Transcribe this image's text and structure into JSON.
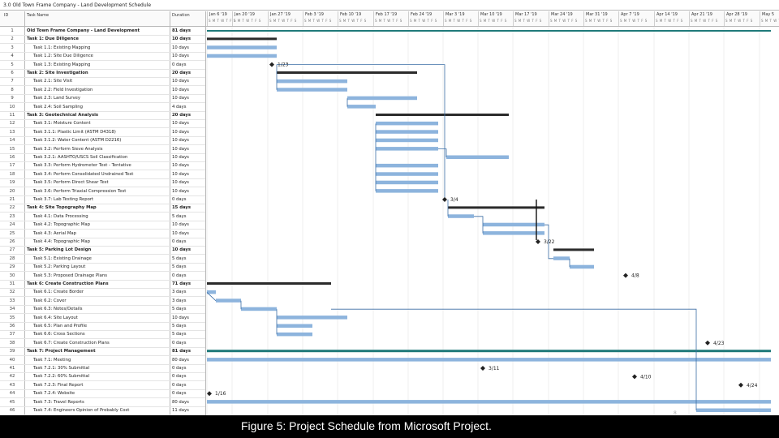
{
  "title": "3.0 Old Town Frame Company - Land Development Schedule",
  "columns": {
    "id": "ID",
    "name": "Task Name",
    "duration": "Duration"
  },
  "timescale": [
    "Jan 6 '19",
    "Jan 20 '19",
    "Jan 27 '19",
    "Feb 3 '19",
    "Feb 10 '19",
    "Feb 17 '19",
    "Feb 24 '19",
    "Mar 3 '19",
    "Mar 10 '19",
    "Mar 17 '19",
    "Mar 24 '19",
    "Mar 31 '19",
    "Apr 7 '19",
    "Apr 14 '19",
    "Apr 21 '19",
    "Apr 28 '19",
    "May 5"
  ],
  "day_letters": "S M T W T F S",
  "tasks": [
    {
      "id": "1",
      "name": "Old Town Frame Company - Land Development",
      "duration": "81 days",
      "summary": true
    },
    {
      "id": "2",
      "name": "Task 1: Due Diligence",
      "duration": "10 days",
      "summary": true
    },
    {
      "id": "3",
      "name": "Task 1.1: Existing Mapping",
      "duration": "10 days"
    },
    {
      "id": "4",
      "name": "Task 1.2: Site Due Diligence",
      "duration": "10 days"
    },
    {
      "id": "5",
      "name": "Task 1.3: Existing Mapping",
      "duration": "0 days"
    },
    {
      "id": "6",
      "name": "Task 2: Site Investigation",
      "duration": "20 days",
      "summary": true
    },
    {
      "id": "7",
      "name": "Task 2.1: Site Visit",
      "duration": "10 days"
    },
    {
      "id": "8",
      "name": "Task 2.2: Field Investigation",
      "duration": "10 days"
    },
    {
      "id": "9",
      "name": "Task 2.3: Land Survey",
      "duration": "10 days"
    },
    {
      "id": "10",
      "name": "Task 2.4: Soil Sampling",
      "duration": "4 days"
    },
    {
      "id": "11",
      "name": "Task 3: Geotechnical Analysis",
      "duration": "20 days",
      "summary": true
    },
    {
      "id": "12",
      "name": "Task 3.1: Moisture Content",
      "duration": "10 days"
    },
    {
      "id": "13",
      "name": "Task 3.1.1: Plastic Limit (ASTM D4318)",
      "duration": "10 days"
    },
    {
      "id": "14",
      "name": "Task 3.1.2: Water Content (ASTM D2216)",
      "duration": "10 days"
    },
    {
      "id": "15",
      "name": "Task 3.2: Perform Sieve Analysis",
      "duration": "10 days"
    },
    {
      "id": "16",
      "name": "Task 3.2.1: AASHTO/USCS Soil Classification",
      "duration": "10 days"
    },
    {
      "id": "17",
      "name": "Task 3.3: Perform Hydrometer Test - Tentative",
      "duration": "10 days"
    },
    {
      "id": "18",
      "name": "Task 3.4: Perform Consolidated Undrained Test",
      "duration": "10 days"
    },
    {
      "id": "19",
      "name": "Task 3.5: Perform Direct Shear Test",
      "duration": "10 days"
    },
    {
      "id": "20",
      "name": "Task 3.6: Perform Triaxial Compression Test",
      "duration": "10 days"
    },
    {
      "id": "21",
      "name": "Task 3.7: Lab Testing Report",
      "duration": "0 days"
    },
    {
      "id": "22",
      "name": "Task 4: Site Topography Map",
      "duration": "15 days",
      "summary": true
    },
    {
      "id": "23",
      "name": "Task 4.1: Data Processing",
      "duration": "5 days"
    },
    {
      "id": "24",
      "name": "Task 4.2: Topographic Map",
      "duration": "10 days"
    },
    {
      "id": "25",
      "name": "Task 4.3: Aerial Map",
      "duration": "10 days"
    },
    {
      "id": "26",
      "name": "Task 4.4: Topographic Map",
      "duration": "0 days"
    },
    {
      "id": "27",
      "name": "Task 5: Parking Lot Design",
      "duration": "10 days",
      "summary": true
    },
    {
      "id": "28",
      "name": "Task 5.1: Existing Drainage",
      "duration": "5 days"
    },
    {
      "id": "29",
      "name": "Task 5.2: Parking Layout",
      "duration": "5 days"
    },
    {
      "id": "30",
      "name": "Task 5.3: Proposed Drainage Plans",
      "duration": "0 days"
    },
    {
      "id": "31",
      "name": "Task 6: Create Construction Plans",
      "duration": "71 days",
      "summary": true
    },
    {
      "id": "32",
      "name": "Task 6.1: Create Border",
      "duration": "3 days"
    },
    {
      "id": "33",
      "name": "Task 6.2: Cover",
      "duration": "3 days"
    },
    {
      "id": "34",
      "name": "Task 6.3: Notes/Details",
      "duration": "5 days"
    },
    {
      "id": "35",
      "name": "Task 6.4: Site Layout",
      "duration": "10 days"
    },
    {
      "id": "36",
      "name": "Task 6.5: Plan and Profile",
      "duration": "5 days"
    },
    {
      "id": "37",
      "name": "Task 6.6: Cross Sections",
      "duration": "5 days"
    },
    {
      "id": "38",
      "name": "Task 6.7: Create Construction Plans",
      "duration": "0 days"
    },
    {
      "id": "39",
      "name": "Task 7: Project Management",
      "duration": "81 days",
      "summary": true
    },
    {
      "id": "40",
      "name": "Task 7.1: Meeting",
      "duration": "80 days"
    },
    {
      "id": "41",
      "name": "Task 7.2.1: 30% Submittal",
      "duration": "0 days"
    },
    {
      "id": "42",
      "name": "Task 7.2.2: 60% Submittal",
      "duration": "0 days"
    },
    {
      "id": "43",
      "name": "Task 7.2.3: Final Report",
      "duration": "0 days"
    },
    {
      "id": "44",
      "name": "Task 7.2.4: Website",
      "duration": "0 days"
    },
    {
      "id": "45",
      "name": "Task 7.3: Travel Reports",
      "duration": "80 days"
    },
    {
      "id": "46",
      "name": "Task 7.4: Engineers Opinion of Probably Cost",
      "duration": "11 days"
    }
  ],
  "milestones": [
    {
      "row": "5",
      "label": "1/23"
    },
    {
      "row": "21",
      "label": "3/4"
    },
    {
      "row": "26",
      "label": "3/22"
    },
    {
      "row": "30",
      "label": "4/8"
    },
    {
      "row": "38",
      "label": "4/23"
    },
    {
      "row": "41",
      "label": "3/11"
    },
    {
      "row": "42",
      "label": "4/10"
    },
    {
      "row": "43",
      "label": "4/24"
    },
    {
      "row": "44",
      "label": "1/16"
    }
  ],
  "caption": "Figure 5: Project Schedule from Microsoft Project.",
  "colors": {
    "bar": "#8db4dd",
    "summary": "#222222",
    "summary_fill": "#2b2b2b",
    "link": "#3c6ea5",
    "crit": "#1f7a7a"
  }
}
